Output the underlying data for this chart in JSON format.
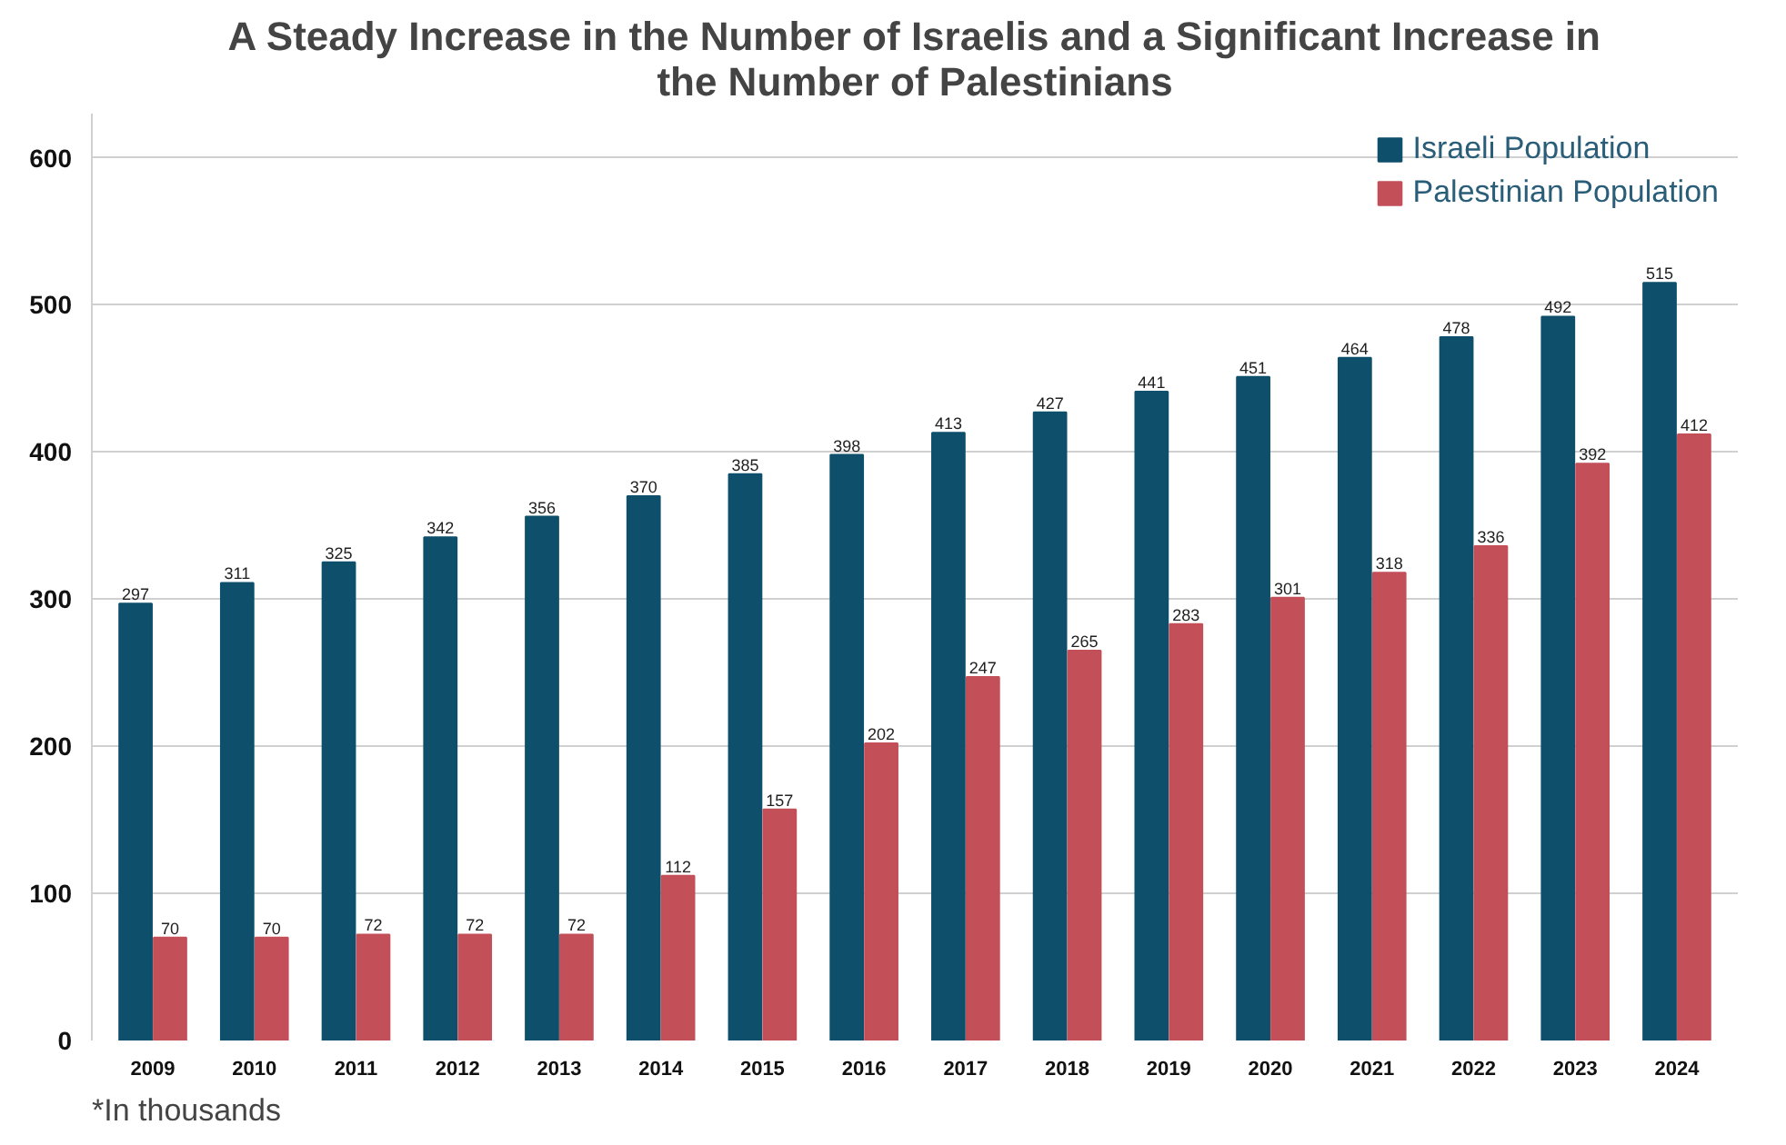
{
  "chart_data": {
    "type": "bar",
    "title": "A Steady Increase in the Number of Israelis and a Significant Increase in the Number of Palestinians",
    "categories": [
      "2009",
      "2010",
      "2011",
      "2012",
      "2013",
      "2014",
      "2015",
      "2016",
      "2017",
      "2018",
      "2019",
      "2020",
      "2021",
      "2022",
      "2023",
      "2024"
    ],
    "series": [
      {
        "name": "Israeli Population",
        "color": "#0e4f6b",
        "values": [
          297,
          311,
          325,
          342,
          356,
          370,
          385,
          398,
          413,
          427,
          441,
          451,
          464,
          478,
          492,
          515
        ]
      },
      {
        "name": "Palestinian Population",
        "color": "#c34f58",
        "values": [
          70,
          70,
          72,
          72,
          72,
          112,
          157,
          202,
          247,
          265,
          283,
          301,
          318,
          336,
          392,
          412
        ]
      }
    ],
    "ylim": [
      0,
      630
    ],
    "yticks": [
      0,
      100,
      200,
      300,
      400,
      500,
      600
    ],
    "grid": "y",
    "legend": "top right",
    "data_labels": true,
    "annotations": [
      "*In thousands"
    ]
  }
}
